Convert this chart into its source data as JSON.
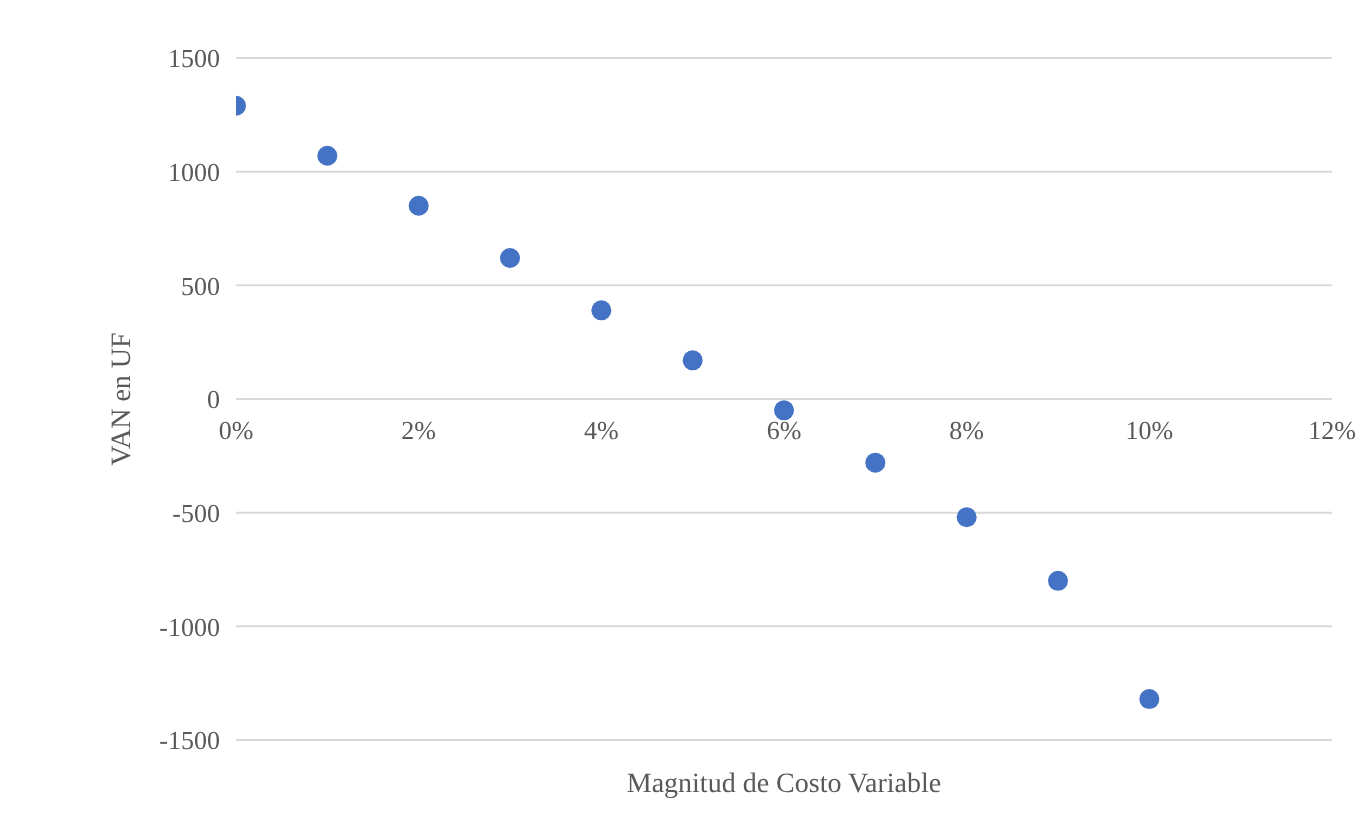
{
  "chart_data": {
    "type": "scatter",
    "xlabel": "Magnitud de Costo Variable",
    "ylabel": "VAN en UF",
    "x": [
      0,
      1,
      2,
      3,
      4,
      5,
      6,
      7,
      8,
      9,
      10
    ],
    "series": [
      {
        "color": "#4472c4",
        "values": [
          1290,
          1070,
          850,
          620,
          390,
          170,
          -50,
          -280,
          -520,
          -800,
          -1320
        ]
      }
    ],
    "xlim": [
      0,
      12
    ],
    "xticks": [
      {
        "value": 0,
        "label": "0%"
      },
      {
        "value": 2,
        "label": "2%"
      },
      {
        "value": 4,
        "label": "4%"
      },
      {
        "value": 6,
        "label": "6%"
      },
      {
        "value": 8,
        "label": "8%"
      },
      {
        "value": 10,
        "label": "10%"
      },
      {
        "value": 12,
        "label": "12%"
      }
    ],
    "ylim": [
      -1500,
      1500
    ],
    "yticks": [
      -1500,
      -1000,
      -500,
      0,
      500,
      1000,
      1500
    ],
    "grid": "y",
    "marker": "circle",
    "legend": false
  }
}
